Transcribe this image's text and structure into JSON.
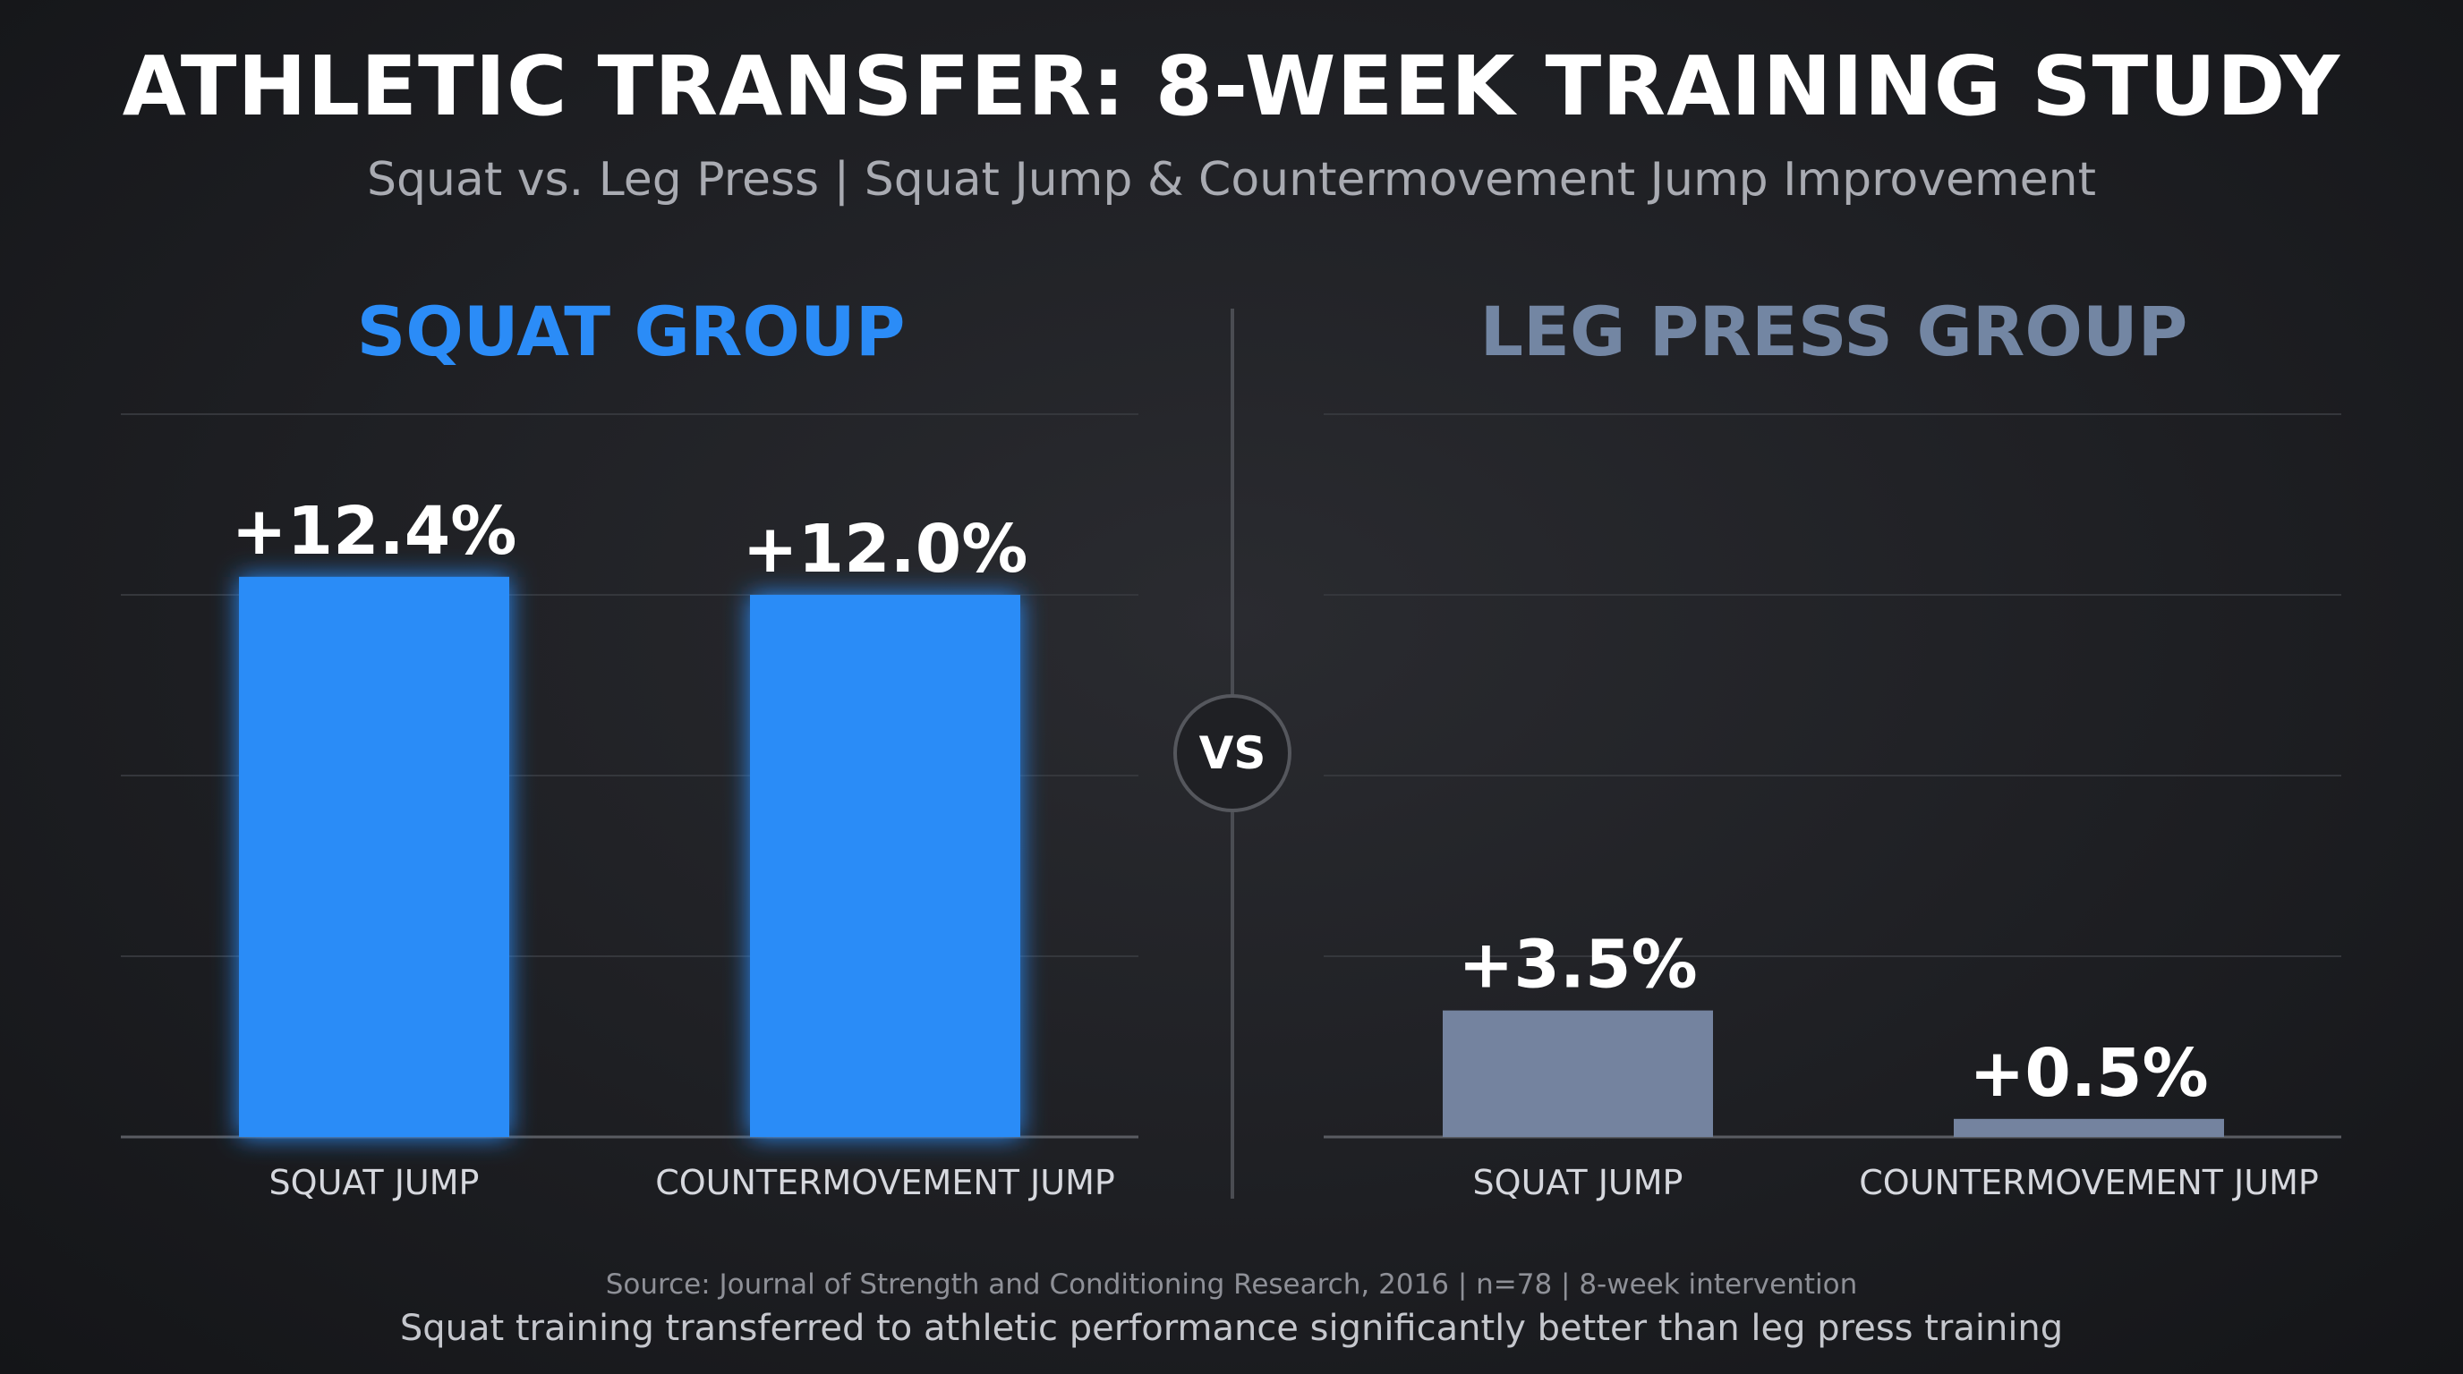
{
  "title": "ATHLETIC TRANSFER: 8-WEEK TRAINING STUDY",
  "subtitle": "Squat vs. Leg Press | Squat Jump & Countermovement Jump Improvement",
  "vs_label": "VS",
  "source": "Source: Journal of Strength and Conditioning Research, 2016 | n=78 | 8-week intervention",
  "conclusion": "Squat training transferred to athletic performance significantly better than leg press training",
  "colors": {
    "squat": "#2b8cf7",
    "leg_press": "#74839f"
  },
  "chart_data": [
    {
      "type": "bar",
      "title": "SQUAT GROUP",
      "categories": [
        "SQUAT JUMP",
        "COUNTERMOVEMENT JUMP"
      ],
      "values": [
        12.4,
        12.0
      ],
      "data_labels": [
        "+12.4%",
        "+12.0%"
      ],
      "ylim": [
        0,
        16
      ],
      "grid": true,
      "color": "#2b8cf7"
    },
    {
      "type": "bar",
      "title": "LEG PRESS GROUP",
      "categories": [
        "SQUAT JUMP",
        "COUNTERMOVEMENT JUMP"
      ],
      "values": [
        3.5,
        0.5
      ],
      "data_labels": [
        "+3.5%",
        "+0.5%"
      ],
      "ylim": [
        0,
        20
      ],
      "grid": true,
      "color": "#74839f"
    }
  ]
}
